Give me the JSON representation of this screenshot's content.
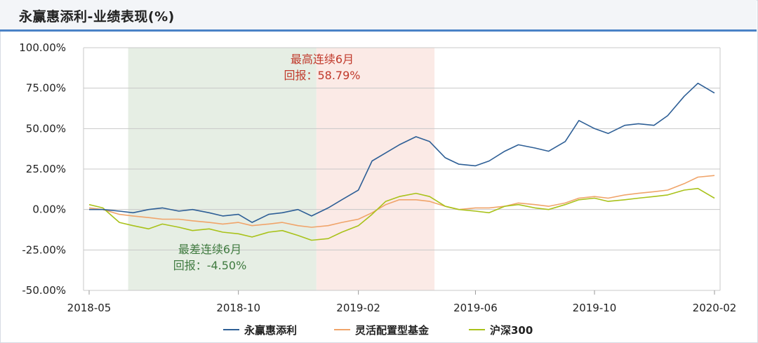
{
  "header": {
    "title": "永赢惠添利-业绩表现(%)"
  },
  "colors": {
    "accent": "#4a82c6",
    "fund": "#2e5f96",
    "peer": "#f0a46a",
    "index": "#a9c21a",
    "best_band": "#fbeae6",
    "worst_band": "#e6eee4",
    "best_text": "#c0392b",
    "worst_text": "#3f7a3f"
  },
  "annotations": {
    "best_line1": "最高连续6月",
    "best_line2": "回报：58.79%",
    "worst_line1": "最差连续6月",
    "worst_line2": "回报：-4.50%"
  },
  "chart_data": {
    "type": "line",
    "title": "永赢惠添利-业绩表现(%)",
    "xlabel": "",
    "ylabel": "",
    "ylim": [
      -50,
      100
    ],
    "y_ticks": [
      "100.00%",
      "75.00%",
      "50.00%",
      "25.00%",
      "0.00%",
      "-25.00%",
      "-50.00%"
    ],
    "y_tick_values": [
      100,
      75,
      50,
      25,
      0,
      -25,
      -50
    ],
    "x_ticks": [
      "2018-05",
      "2018-10",
      "2019-02",
      "2019-06",
      "2019-10",
      "2020-02"
    ],
    "x_tick_values": [
      "2018-05-01",
      "2018-10-01",
      "2019-02-01",
      "2019-06-01",
      "2019-10-01",
      "2020-02-01"
    ],
    "xlim": [
      "2018-05-01",
      "2020-02-01"
    ],
    "grid": true,
    "legend_position": "bottom",
    "highlight_bands": [
      {
        "label": "最差连续6月",
        "start": "2018-06-10",
        "end": "2018-12-20",
        "value": -4.5
      },
      {
        "label": "最高连续6月",
        "start": "2018-12-20",
        "end": "2019-04-20",
        "value": 58.79
      }
    ],
    "series": [
      {
        "name": "永赢惠添利",
        "dates": [
          "2018-05-01",
          "2018-05-15",
          "2018-06-01",
          "2018-06-15",
          "2018-07-01",
          "2018-07-15",
          "2018-08-01",
          "2018-08-15",
          "2018-09-01",
          "2018-09-15",
          "2018-10-01",
          "2018-10-15",
          "2018-11-01",
          "2018-11-15",
          "2018-12-01",
          "2018-12-15",
          "2019-01-01",
          "2019-01-15",
          "2019-02-01",
          "2019-02-15",
          "2019-03-01",
          "2019-03-15",
          "2019-04-01",
          "2019-04-15",
          "2019-05-01",
          "2019-05-15",
          "2019-06-01",
          "2019-06-15",
          "2019-07-01",
          "2019-07-15",
          "2019-08-01",
          "2019-08-15",
          "2019-09-01",
          "2019-09-15",
          "2019-10-01",
          "2019-10-15",
          "2019-11-01",
          "2019-11-15",
          "2019-12-01",
          "2019-12-15",
          "2020-01-01",
          "2020-01-15",
          "2020-02-01"
        ],
        "values": [
          0,
          0,
          -1,
          -2,
          0,
          1,
          -1,
          0,
          -2,
          -4,
          -3,
          -8,
          -3,
          -2,
          0,
          -4,
          1,
          6,
          12,
          30,
          35,
          40,
          45,
          42,
          32,
          28,
          27,
          30,
          36,
          40,
          38,
          36,
          42,
          55,
          50,
          47,
          52,
          53,
          52,
          58,
          70,
          78,
          72
        ]
      },
      {
        "name": "灵活配置型基金",
        "dates": [
          "2018-05-01",
          "2018-05-15",
          "2018-06-01",
          "2018-06-15",
          "2018-07-01",
          "2018-07-15",
          "2018-08-01",
          "2018-08-15",
          "2018-09-01",
          "2018-09-15",
          "2018-10-01",
          "2018-10-15",
          "2018-11-01",
          "2018-11-15",
          "2018-12-01",
          "2018-12-15",
          "2019-01-01",
          "2019-01-15",
          "2019-02-01",
          "2019-02-15",
          "2019-03-01",
          "2019-03-15",
          "2019-04-01",
          "2019-04-15",
          "2019-05-01",
          "2019-05-15",
          "2019-06-01",
          "2019-06-15",
          "2019-07-01",
          "2019-07-15",
          "2019-08-01",
          "2019-08-15",
          "2019-09-01",
          "2019-09-15",
          "2019-10-01",
          "2019-10-15",
          "2019-11-01",
          "2019-11-15",
          "2019-12-01",
          "2019-12-15",
          "2020-01-01",
          "2020-01-15",
          "2020-02-01"
        ],
        "values": [
          1,
          0,
          -3,
          -4,
          -5,
          -6,
          -6,
          -7,
          -8,
          -9,
          -8,
          -10,
          -9,
          -8,
          -10,
          -11,
          -10,
          -8,
          -6,
          -2,
          3,
          6,
          6,
          5,
          2,
          0,
          1,
          1,
          2,
          4,
          3,
          2,
          4,
          7,
          8,
          7,
          9,
          10,
          11,
          12,
          16,
          20,
          21
        ]
      },
      {
        "name": "沪深300",
        "dates": [
          "2018-05-01",
          "2018-05-15",
          "2018-06-01",
          "2018-06-15",
          "2018-07-01",
          "2018-07-15",
          "2018-08-01",
          "2018-08-15",
          "2018-09-01",
          "2018-09-15",
          "2018-10-01",
          "2018-10-15",
          "2018-11-01",
          "2018-11-15",
          "2018-12-01",
          "2018-12-15",
          "2019-01-01",
          "2019-01-15",
          "2019-02-01",
          "2019-02-15",
          "2019-03-01",
          "2019-03-15",
          "2019-04-01",
          "2019-04-15",
          "2019-05-01",
          "2019-05-15",
          "2019-06-01",
          "2019-06-15",
          "2019-07-01",
          "2019-07-15",
          "2019-08-01",
          "2019-08-15",
          "2019-09-01",
          "2019-09-15",
          "2019-10-01",
          "2019-10-15",
          "2019-11-01",
          "2019-11-15",
          "2019-12-01",
          "2019-12-15",
          "2020-01-01",
          "2020-01-15",
          "2020-02-01"
        ],
        "values": [
          3,
          1,
          -8,
          -10,
          -12,
          -9,
          -11,
          -13,
          -12,
          -14,
          -15,
          -17,
          -14,
          -13,
          -16,
          -19,
          -18,
          -14,
          -10,
          -3,
          5,
          8,
          10,
          8,
          2,
          0,
          -1,
          -2,
          2,
          3,
          1,
          0,
          3,
          6,
          7,
          5,
          6,
          7,
          8,
          9,
          12,
          13,
          7
        ]
      }
    ]
  }
}
